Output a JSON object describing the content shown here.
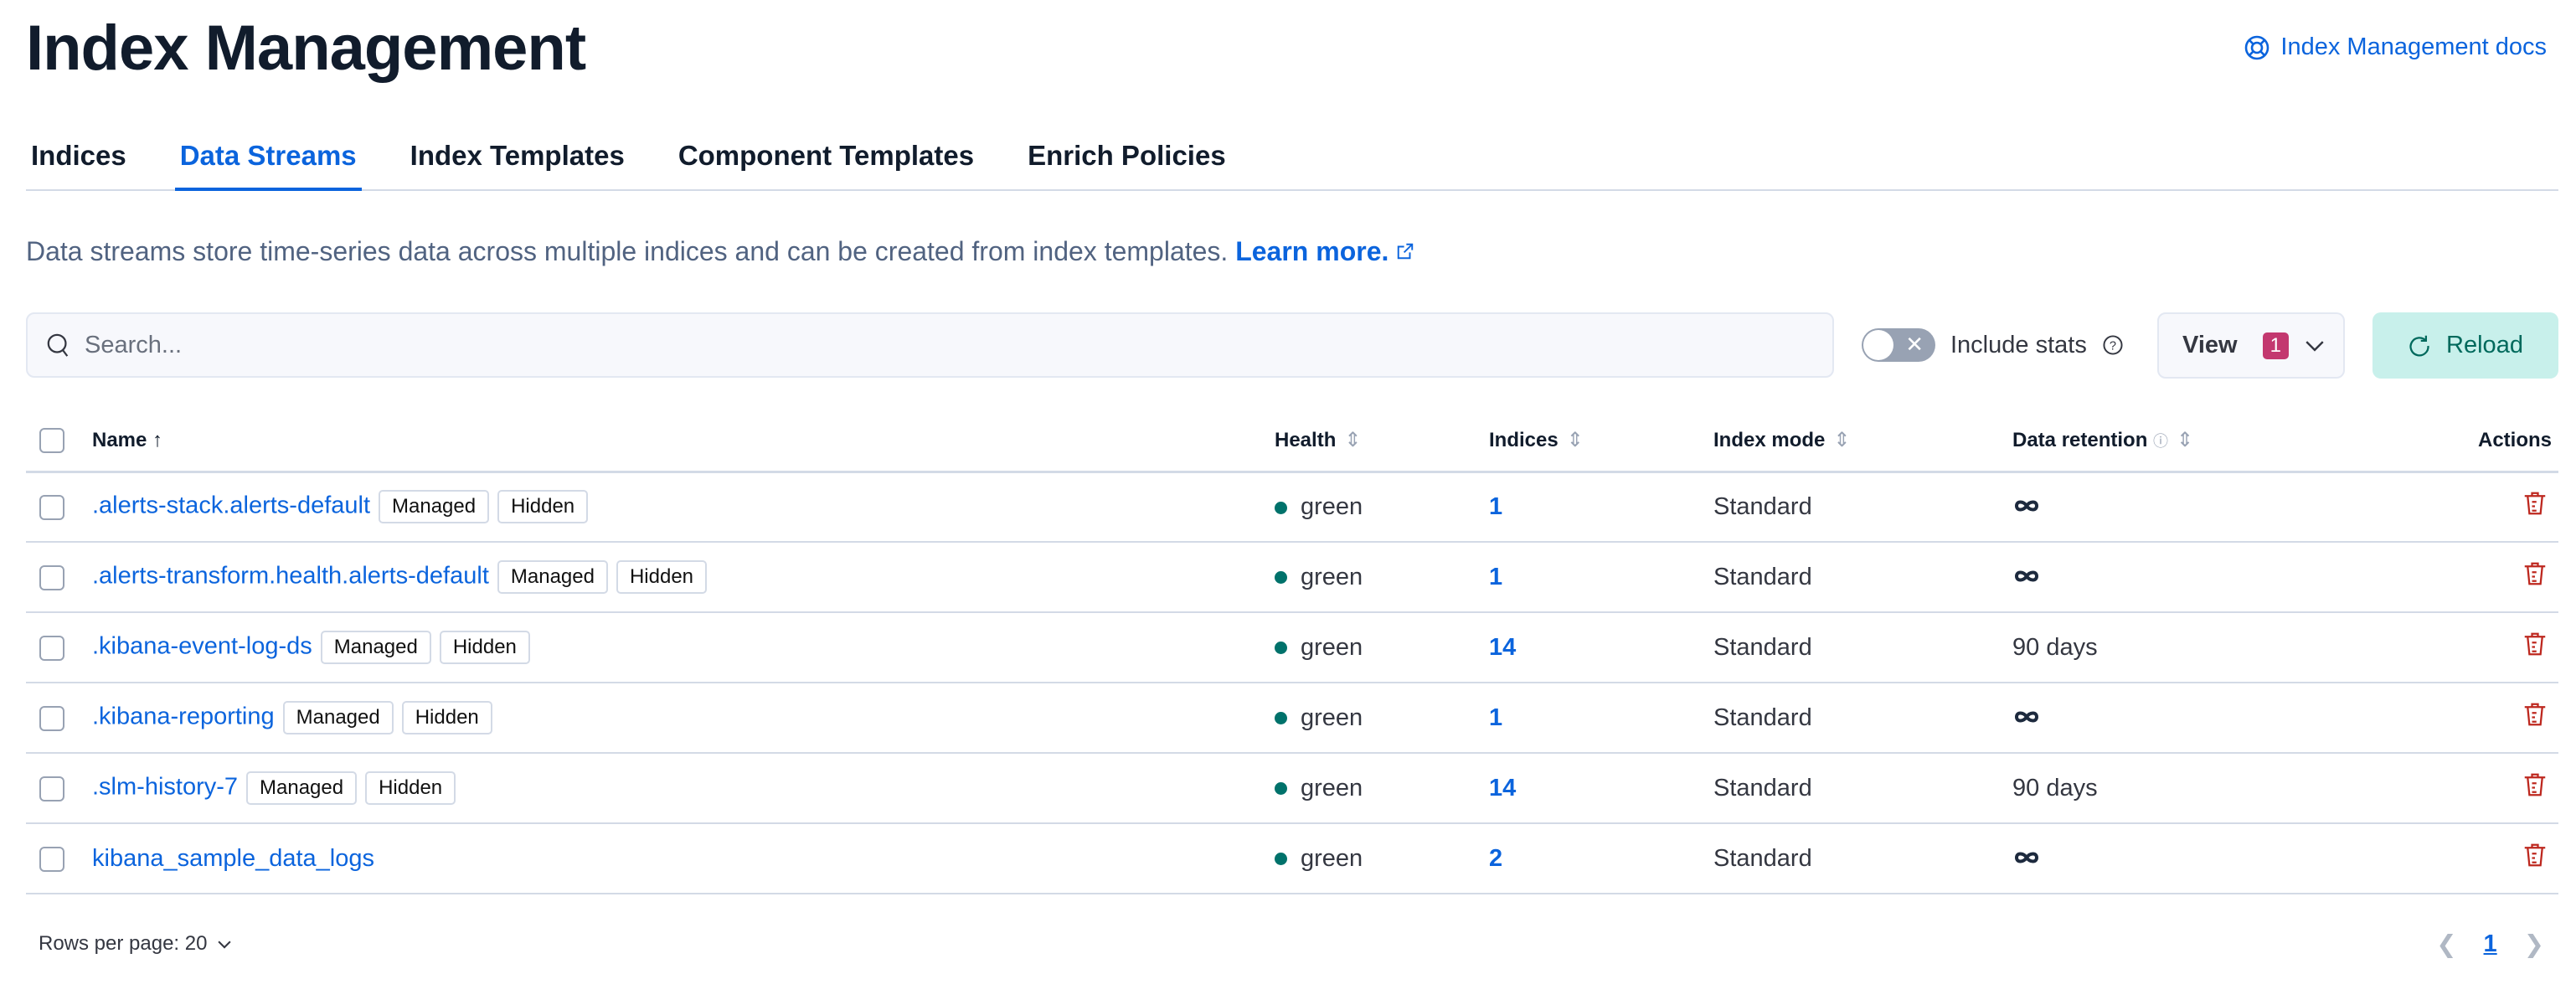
{
  "header": {
    "title": "Index Management",
    "docs_link": "Index Management docs"
  },
  "tabs": [
    {
      "label": "Indices"
    },
    {
      "label": "Data Streams",
      "active": true
    },
    {
      "label": "Index Templates"
    },
    {
      "label": "Component Templates"
    },
    {
      "label": "Enrich Policies"
    }
  ],
  "description": {
    "text": "Data streams store time-series data across multiple indices and can be created from index templates. ",
    "link": "Learn more."
  },
  "toolbar": {
    "search_placeholder": "Search...",
    "include_stats_label": "Include stats",
    "include_stats_on": false,
    "view_label": "View",
    "view_count": "1",
    "reload_label": "Reload"
  },
  "table": {
    "columns": [
      "Name",
      "Health",
      "Indices",
      "Index mode",
      "Data retention",
      "Actions"
    ],
    "sort": {
      "column": "Name",
      "direction": "ascending"
    },
    "rows": [
      {
        "name": ".alerts-stack.alerts-default",
        "badges": [
          "Managed",
          "Hidden"
        ],
        "health": "green",
        "indices": "1",
        "mode": "Standard",
        "retention": "∞"
      },
      {
        "name": ".alerts-transform.health.alerts-default",
        "badges": [
          "Managed",
          "Hidden"
        ],
        "health": "green",
        "indices": "1",
        "mode": "Standard",
        "retention": "∞"
      },
      {
        "name": ".kibana-event-log-ds",
        "badges": [
          "Managed",
          "Hidden"
        ],
        "health": "green",
        "indices": "14",
        "mode": "Standard",
        "retention": "90 days"
      },
      {
        "name": ".kibana-reporting",
        "badges": [
          "Managed",
          "Hidden"
        ],
        "health": "green",
        "indices": "1",
        "mode": "Standard",
        "retention": "∞"
      },
      {
        "name": ".slm-history-7",
        "badges": [
          "Managed",
          "Hidden"
        ],
        "health": "green",
        "indices": "14",
        "mode": "Standard",
        "retention": "90 days"
      },
      {
        "name": "kibana_sample_data_logs",
        "badges": [],
        "health": "green",
        "indices": "2",
        "mode": "Standard",
        "retention": "∞"
      }
    ]
  },
  "footer": {
    "rows_per_page": "Rows per page: 20",
    "current_page": "1"
  },
  "colors": {
    "accent": "#0b64dd",
    "health_green": "#00726b",
    "danger": "#bd271e",
    "reload_bg": "#c8f0eb"
  }
}
